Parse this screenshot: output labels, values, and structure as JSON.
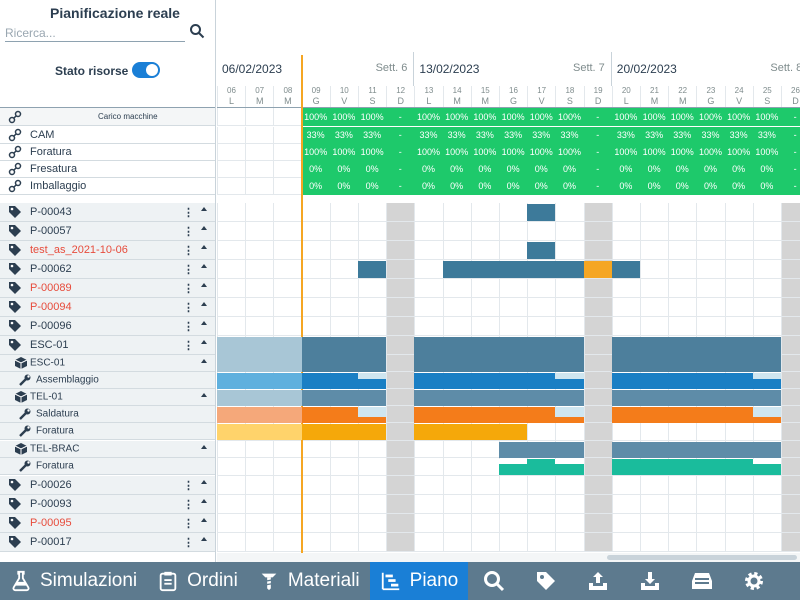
{
  "header": {
    "title": "Pianificazione reale",
    "search_placeholder": "Ricerca...",
    "stato_label": "Stato risorse"
  },
  "weeks": [
    {
      "date": "06/02/2023",
      "sett": "Sett. 6"
    },
    {
      "date": "13/02/2023",
      "sett": "Sett. 7"
    },
    {
      "date": "20/02/2023",
      "sett": "Sett. 8"
    }
  ],
  "days": [
    {
      "n": "06",
      "l": "L"
    },
    {
      "n": "07",
      "l": "M"
    },
    {
      "n": "08",
      "l": "M"
    },
    {
      "n": "09",
      "l": "G"
    },
    {
      "n": "10",
      "l": "V"
    },
    {
      "n": "11",
      "l": "S"
    },
    {
      "n": "12",
      "l": "D"
    },
    {
      "n": "13",
      "l": "L"
    },
    {
      "n": "14",
      "l": "M"
    },
    {
      "n": "15",
      "l": "M"
    },
    {
      "n": "16",
      "l": "G"
    },
    {
      "n": "17",
      "l": "V"
    },
    {
      "n": "18",
      "l": "S"
    },
    {
      "n": "19",
      "l": "D"
    },
    {
      "n": "20",
      "l": "L"
    },
    {
      "n": "21",
      "l": "M"
    },
    {
      "n": "22",
      "l": "M"
    },
    {
      "n": "23",
      "l": "G"
    },
    {
      "n": "24",
      "l": "V"
    },
    {
      "n": "25",
      "l": "S"
    },
    {
      "n": "26",
      "l": "D"
    }
  ],
  "resources": {
    "header_label": "Carico macchine",
    "items": [
      {
        "name": "CAM",
        "load": [
          "",
          "",
          "",
          "33%",
          "33%",
          "33%",
          "-",
          "33%",
          "33%",
          "33%",
          "33%",
          "33%",
          "33%",
          "-",
          "33%",
          "33%",
          "33%",
          "33%",
          "33%",
          "33%",
          "-"
        ]
      },
      {
        "name": "Foratura",
        "load": [
          "",
          "",
          "",
          "100%",
          "100%",
          "100%",
          "-",
          "100%",
          "100%",
          "100%",
          "100%",
          "100%",
          "100%",
          "-",
          "100%",
          "100%",
          "100%",
          "100%",
          "100%",
          "100%",
          "-"
        ]
      },
      {
        "name": "Fresatura",
        "load": [
          "",
          "",
          "",
          "0%",
          "0%",
          "0%",
          "-",
          "0%",
          "0%",
          "0%",
          "0%",
          "0%",
          "0%",
          "-",
          "0%",
          "0%",
          "0%",
          "0%",
          "0%",
          "0%",
          "-"
        ]
      },
      {
        "name": "Imballaggio",
        "load": [
          "",
          "",
          "",
          "0%",
          "0%",
          "0%",
          "-",
          "0%",
          "0%",
          "0%",
          "0%",
          "0%",
          "0%",
          "-",
          "0%",
          "0%",
          "0%",
          "0%",
          "0%",
          "0%",
          "-"
        ]
      }
    ],
    "total_load": [
      "",
      "",
      "",
      "100%",
      "100%",
      "100%",
      "-",
      "100%",
      "100%",
      "100%",
      "100%",
      "100%",
      "100%",
      "-",
      "100%",
      "100%",
      "100%",
      "100%",
      "100%",
      "100%",
      "-"
    ]
  },
  "orders": [
    {
      "label": "P-00043",
      "red": false
    },
    {
      "label": "P-00057",
      "red": false
    },
    {
      "label": "test_as_2021-10-06",
      "red": true
    },
    {
      "label": "P-00062",
      "red": false
    },
    {
      "label": "P-00089",
      "red": true
    },
    {
      "label": "P-00094",
      "red": true
    },
    {
      "label": "P-00096",
      "red": false
    },
    {
      "label": "ESC-01",
      "red": false
    },
    {
      "label": "ESC-01",
      "red": false,
      "sub": true,
      "icon": "box-icon"
    },
    {
      "label": "Assemblaggio",
      "red": false,
      "sub": true,
      "icon": "wrench-icon"
    },
    {
      "label": "TEL-01",
      "red": false,
      "sub": true,
      "icon": "box-icon"
    },
    {
      "label": "Saldatura",
      "red": false,
      "sub": true,
      "icon": "wrench-icon"
    },
    {
      "label": "Foratura",
      "red": false,
      "sub": true,
      "icon": "wrench-icon"
    },
    {
      "label": "TEL-BRAC",
      "red": false,
      "sub": true,
      "icon": "box-icon"
    },
    {
      "label": "Foratura",
      "red": false,
      "sub": true,
      "icon": "wrench-icon"
    },
    {
      "label": "P-00026",
      "red": false
    },
    {
      "label": "P-00093",
      "red": false
    },
    {
      "label": "P-00095",
      "red": true
    },
    {
      "label": "P-00017",
      "red": false
    }
  ],
  "nav": {
    "simulazioni": "Simulazioni",
    "ordini": "Ordini",
    "materiali": "Materiali",
    "piano": "Piano"
  },
  "colors": {
    "green": "#1ec96b",
    "blue": "#3d7a9a",
    "orange": "#f5a623",
    "accent": "#1a7fd6"
  }
}
